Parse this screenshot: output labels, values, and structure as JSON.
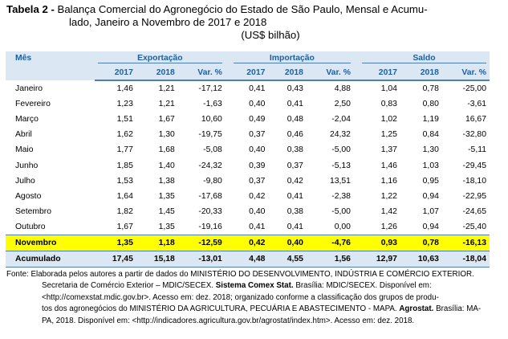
{
  "title": {
    "prefix": "Tabela 2 -",
    "line1": "Balança Comercial do Agronegócio do Estado de São Paulo, Mensal e Acumu-",
    "line2": "lado, Janeiro a Novembro de 2017 e 2018",
    "unit": "(US$ bilhão)"
  },
  "table": {
    "month_header": "Mês",
    "groups": [
      "Exportação",
      "Importação",
      "Saldo"
    ],
    "subheaders": [
      "2017",
      "2018",
      "Var. %",
      "2017",
      "2018",
      "Var. %",
      "2017",
      "2018",
      "Var. %"
    ],
    "rows": [
      {
        "mes": "Janeiro",
        "v": [
          "1,46",
          "1,21",
          "-17,12",
          "0,41",
          "0,43",
          "4,88",
          "1,04",
          "0,78",
          "-25,00"
        ]
      },
      {
        "mes": "Fevereiro",
        "v": [
          "1,23",
          "1,21",
          "-1,63",
          "0,40",
          "0,41",
          "2,50",
          "0,83",
          "0,80",
          "-3,61"
        ]
      },
      {
        "mes": "Março",
        "v": [
          "1,51",
          "1,67",
          "10,60",
          "0,49",
          "0,48",
          "-2,04",
          "1,02",
          "1,19",
          "16,67"
        ]
      },
      {
        "mes": "Abril",
        "v": [
          "1,62",
          "1,30",
          "-19,75",
          "0,37",
          "0,46",
          "24,32",
          "1,25",
          "0,84",
          "-32,80"
        ]
      },
      {
        "mes": "Maio",
        "v": [
          "1,77",
          "1,68",
          "-5,08",
          "0,40",
          "0,38",
          "-5,00",
          "1,37",
          "1,30",
          "-5,11"
        ]
      },
      {
        "mes": "Junho",
        "v": [
          "1,85",
          "1,40",
          "-24,32",
          "0,39",
          "0,37",
          "-5,13",
          "1,46",
          "1,03",
          "-29,45"
        ]
      },
      {
        "mes": "Julho",
        "v": [
          "1,53",
          "1,38",
          "-9,80",
          "0,37",
          "0,42",
          "13,51",
          "1,16",
          "0,95",
          "-18,10"
        ]
      },
      {
        "mes": "Agosto",
        "v": [
          "1,64",
          "1,35",
          "-17,68",
          "0,42",
          "0,41",
          "-2,38",
          "1,22",
          "0,94",
          "-22,95"
        ]
      },
      {
        "mes": "Setembro",
        "v": [
          "1,82",
          "1,45",
          "-20,33",
          "0,40",
          "0,38",
          "-5,00",
          "1,42",
          "1,07",
          "-24,65"
        ]
      },
      {
        "mes": "Outubro",
        "v": [
          "1,67",
          "1,35",
          "-19,16",
          "0,41",
          "0,41",
          "0,00",
          "1,26",
          "0,94",
          "-25,40"
        ]
      }
    ],
    "highlight": {
      "mes": "Novembro",
      "v": [
        "1,35",
        "1,18",
        "-12,59",
        "0,42",
        "0,40",
        "-4,76",
        "0,93",
        "0,78",
        "-16,13"
      ]
    },
    "total": {
      "mes": "Acumulado",
      "v": [
        "17,45",
        "15,18",
        "-13,01",
        "4,48",
        "4,55",
        "1,56",
        "12,97",
        "10,63",
        "-18,04"
      ]
    },
    "colors": {
      "header_bg": "#dbe8f3",
      "header_text": "#1f5f9e",
      "highlight_bg": "#ffff00",
      "rule": "#4f7fb0"
    }
  },
  "source": {
    "lines": [
      {
        "parts": [
          {
            "t": "Fonte: Elaborada pelos autores a partir de dados do MINISTÉRIO DO DESENVOLVIMENTO, INDÚSTRIA E COMÉRCIO EXTERIOR."
          }
        ]
      },
      {
        "parts": [
          {
            "t": "Secretaria de Comércio Exterior – MDIC/SECEX. "
          },
          {
            "t": "Sistema Comex Stat.",
            "b": true
          },
          {
            "t": " Brasília: MDIC/SECEX. Disponível em:"
          }
        ]
      },
      {
        "parts": [
          {
            "t": "<http://comexstat.mdic.gov.br>. Acesso em: dez. 2018; organizado conforme a classificação dos grupos de produ-"
          }
        ]
      },
      {
        "parts": [
          {
            "t": "tos dos agronegócios do MINISTÉRIO DA AGRICULTURA, PECUÁRIA E ABASTECIMENTO - MAPA. "
          },
          {
            "t": "Agrostat.",
            "b": true
          },
          {
            "t": " Brasília: MA-"
          }
        ]
      },
      {
        "parts": [
          {
            "t": "PA, 2018. Disponível em: <http://indicadores.agricultura.gov.br/agrostat/index.htm>. Acesso em: dez. 2018."
          }
        ]
      }
    ]
  }
}
